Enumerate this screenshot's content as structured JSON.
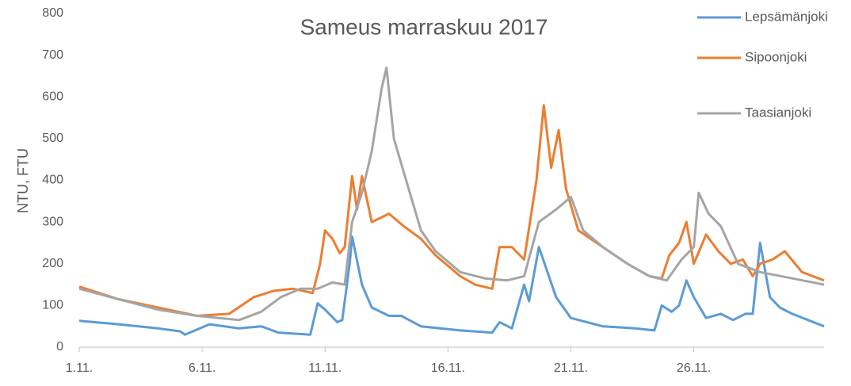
{
  "chart_data": {
    "type": "line",
    "title": "Sameus marraskuu 2017",
    "y_label": "NTU, FTU",
    "xlim": [
      1,
      31.3
    ],
    "xticks": [
      {
        "value": 1,
        "label": "1.11."
      },
      {
        "value": 6,
        "label": "6.11."
      },
      {
        "value": 11,
        "label": "11.11."
      },
      {
        "value": 16,
        "label": "16.11."
      },
      {
        "value": 21,
        "label": "21.11."
      },
      {
        "value": 26,
        "label": "26.11."
      }
    ],
    "ylim": [
      0,
      800
    ],
    "yticks": [
      0,
      100,
      200,
      300,
      400,
      500,
      600,
      700,
      800
    ],
    "grid": false,
    "legend": "top-right",
    "series": [
      {
        "name": "Lepsämänjoki",
        "color": "#5b9bd5",
        "x": [
          1,
          2.6,
          4.2,
          5.1,
          5.3,
          6.3,
          7.5,
          8.4,
          9.1,
          10.4,
          10.7,
          11,
          11.5,
          11.7,
          12,
          12.1,
          12.5,
          12.9,
          13.6,
          14.1,
          14.9,
          16.5,
          17.8,
          18.1,
          18.6,
          19.1,
          19.3,
          19.7,
          20.4,
          21,
          22.3,
          23.6,
          24.4,
          24.7,
          25.1,
          25.4,
          25.7,
          26,
          26.5,
          27.1,
          27.6,
          28.1,
          28.4,
          28.7,
          29.1,
          29.5,
          30,
          31.3
        ],
        "values": [
          63,
          55,
          45,
          38,
          30,
          55,
          45,
          50,
          35,
          30,
          105,
          90,
          60,
          65,
          200,
          265,
          150,
          95,
          75,
          75,
          50,
          40,
          35,
          60,
          45,
          150,
          110,
          240,
          120,
          70,
          50,
          45,
          40,
          100,
          85,
          100,
          160,
          120,
          70,
          80,
          65,
          80,
          80,
          250,
          120,
          95,
          80,
          50
        ]
      },
      {
        "name": "Sipoonjoki",
        "color": "#ed7d31",
        "x": [
          1,
          2.6,
          4.2,
          5.8,
          7.1,
          8.1,
          8.9,
          9.7,
          10.5,
          10.8,
          11,
          11.3,
          11.6,
          11.8,
          12.1,
          12.3,
          12.5,
          12.9,
          13.6,
          14.2,
          14.9,
          15.5,
          16.5,
          17.1,
          17.8,
          18.1,
          18.6,
          19.1,
          19.6,
          19.9,
          20.2,
          20.5,
          20.8,
          21.3,
          22.3,
          23.3,
          24.2,
          24.7,
          25,
          25.4,
          25.7,
          26,
          26.5,
          27,
          27.5,
          28,
          28.4,
          28.7,
          29.2,
          29.7,
          30.4,
          31.3
        ],
        "values": [
          145,
          115,
          95,
          75,
          80,
          120,
          135,
          140,
          130,
          200,
          280,
          260,
          225,
          240,
          410,
          330,
          410,
          300,
          320,
          290,
          260,
          220,
          170,
          150,
          140,
          240,
          240,
          210,
          400,
          580,
          430,
          520,
          380,
          280,
          240,
          200,
          170,
          165,
          220,
          250,
          300,
          200,
          270,
          230,
          200,
          210,
          170,
          200,
          210,
          230,
          180,
          160
        ]
      },
      {
        "name": "Taasianjoki",
        "color": "#a5a5a5",
        "x": [
          1,
          2.6,
          4.2,
          5.8,
          7.5,
          8.4,
          9.2,
          10,
          10.7,
          11.3,
          11.8,
          12.1,
          12.5,
          12.9,
          13.3,
          13.5,
          13.8,
          14.1,
          14.4,
          14.9,
          15.5,
          16.5,
          17.5,
          18.4,
          19.1,
          19.7,
          20.4,
          21,
          21.5,
          22.3,
          23.3,
          24.2,
          24.9,
          25.5,
          26,
          26.2,
          26.6,
          27.1,
          27.8,
          28.7,
          30,
          31.3
        ],
        "values": [
          140,
          115,
          90,
          75,
          65,
          85,
          120,
          140,
          140,
          155,
          150,
          300,
          370,
          470,
          620,
          670,
          500,
          440,
          380,
          280,
          230,
          180,
          165,
          160,
          170,
          300,
          330,
          360,
          280,
          240,
          200,
          170,
          160,
          210,
          240,
          370,
          320,
          290,
          200,
          180,
          165,
          150
        ]
      }
    ]
  }
}
